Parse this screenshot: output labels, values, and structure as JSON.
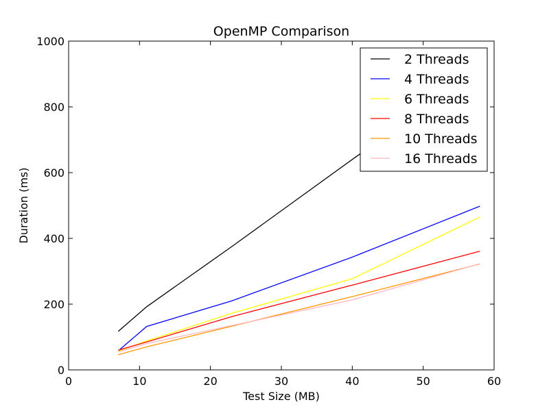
{
  "chart_data": {
    "type": "line",
    "title": "OpenMP Comparison",
    "xlabel": "Test Size (MB)",
    "ylabel": "Duration (ms)",
    "xlim": [
      0,
      60
    ],
    "ylim": [
      0,
      1000
    ],
    "xticks": [
      0,
      10,
      20,
      30,
      40,
      50,
      60
    ],
    "yticks": [
      0,
      200,
      400,
      600,
      800,
      1000
    ],
    "grid": false,
    "legend_position": "top-right",
    "x": [
      7,
      11,
      23,
      40,
      58
    ],
    "series": [
      {
        "name": "2 Threads",
        "color": "#000000",
        "values": [
          117,
          192,
          375,
          640,
          915
        ]
      },
      {
        "name": "4 Threads",
        "color": "#0000ff",
        "values": [
          58,
          132,
          210,
          343,
          498
        ]
      },
      {
        "name": "6 Threads",
        "color": "#ffff00",
        "values": [
          57,
          88,
          172,
          277,
          465
        ]
      },
      {
        "name": "8 Threads",
        "color": "#ff0000",
        "values": [
          60,
          85,
          162,
          258,
          361
        ]
      },
      {
        "name": "10 Threads",
        "color": "#ff9900",
        "values": [
          46,
          70,
          133,
          223,
          322
        ]
      },
      {
        "name": "16 Threads",
        "color": "#ffb6c1",
        "values": [
          55,
          80,
          135,
          213,
          323
        ]
      }
    ]
  }
}
